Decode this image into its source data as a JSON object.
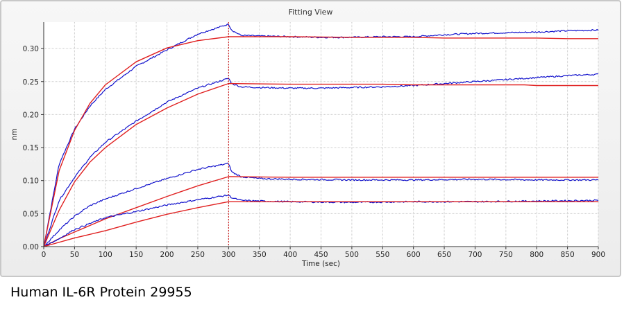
{
  "window": {
    "title": "Fitting View"
  },
  "caption": "Human IL-6R Protein 29955",
  "colors": {
    "measured": "#1111cc",
    "fit": "#e02020",
    "grid": "#c9c9c9",
    "divider": "#cc0000",
    "plot_bg": "#ffffff"
  },
  "chart_data": {
    "type": "line",
    "title": "Fitting View",
    "xlabel": "Time (sec)",
    "ylabel": "nm",
    "xlim": [
      0,
      900
    ],
    "ylim": [
      0,
      0.34
    ],
    "x_ticks": [
      0,
      50,
      100,
      150,
      200,
      250,
      300,
      350,
      400,
      450,
      500,
      550,
      600,
      650,
      700,
      750,
      800,
      850,
      900
    ],
    "y_ticks": [
      "0.00",
      "0.05",
      "0.10",
      "0.15",
      "0.20",
      "0.25",
      "0.30"
    ],
    "grid": true,
    "association_end_marker_x": 300,
    "series": [
      {
        "style": "measured",
        "color": "#1111cc",
        "x": [
          0,
          25,
          50,
          75,
          100,
          150,
          200,
          250,
          300,
          305,
          320,
          350,
          400,
          450,
          500,
          550,
          600,
          650,
          700,
          750,
          800,
          850,
          900
        ],
        "y": [
          0,
          0.125,
          0.178,
          0.213,
          0.238,
          0.273,
          0.298,
          0.322,
          0.337,
          0.328,
          0.32,
          0.319,
          0.318,
          0.317,
          0.317,
          0.318,
          0.318,
          0.321,
          0.323,
          0.324,
          0.325,
          0.327,
          0.328
        ]
      },
      {
        "style": "fit",
        "color": "#e02020",
        "x": [
          0,
          25,
          50,
          75,
          100,
          150,
          200,
          250,
          300,
          400,
          500,
          600,
          650,
          700,
          800,
          850,
          900
        ],
        "y": [
          0,
          0.115,
          0.176,
          0.217,
          0.245,
          0.28,
          0.301,
          0.312,
          0.318,
          0.318,
          0.317,
          0.317,
          0.316,
          0.316,
          0.316,
          0.315,
          0.315
        ]
      },
      {
        "style": "measured",
        "color": "#1111cc",
        "x": [
          0,
          25,
          50,
          75,
          100,
          150,
          200,
          250,
          300,
          305,
          320,
          350,
          400,
          450,
          500,
          550,
          600,
          650,
          700,
          750,
          800,
          850,
          900
        ],
        "y": [
          0,
          0.07,
          0.105,
          0.135,
          0.158,
          0.19,
          0.219,
          0.24,
          0.255,
          0.247,
          0.242,
          0.241,
          0.24,
          0.24,
          0.241,
          0.242,
          0.244,
          0.247,
          0.25,
          0.253,
          0.256,
          0.259,
          0.261
        ]
      },
      {
        "style": "fit",
        "color": "#e02020",
        "x": [
          0,
          25,
          50,
          75,
          100,
          150,
          200,
          250,
          300,
          400,
          500,
          550,
          600,
          700,
          780,
          800,
          900
        ],
        "y": [
          0,
          0.055,
          0.098,
          0.128,
          0.15,
          0.185,
          0.21,
          0.231,
          0.247,
          0.246,
          0.246,
          0.246,
          0.245,
          0.245,
          0.245,
          0.244,
          0.244
        ]
      },
      {
        "style": "measured",
        "color": "#1111cc",
        "x": [
          0,
          25,
          50,
          75,
          100,
          150,
          200,
          250,
          300,
          305,
          320,
          350,
          400,
          500,
          600,
          700,
          800,
          900
        ],
        "y": [
          0,
          0.025,
          0.046,
          0.062,
          0.072,
          0.088,
          0.103,
          0.117,
          0.126,
          0.113,
          0.106,
          0.103,
          0.102,
          0.101,
          0.101,
          0.102,
          0.101,
          0.101
        ]
      },
      {
        "style": "fit",
        "color": "#e02020",
        "x": [
          0,
          25,
          50,
          100,
          150,
          200,
          250,
          300,
          400,
          500,
          600,
          700,
          800,
          900
        ],
        "y": [
          0,
          0.012,
          0.022,
          0.042,
          0.059,
          0.076,
          0.092,
          0.106,
          0.105,
          0.105,
          0.105,
          0.105,
          0.105,
          0.105
        ]
      },
      {
        "style": "measured",
        "color": "#1111cc",
        "x": [
          0,
          25,
          50,
          75,
          100,
          150,
          200,
          250,
          300,
          305,
          320,
          350,
          400,
          500,
          600,
          700,
          800,
          900
        ],
        "y": [
          0,
          0.012,
          0.026,
          0.035,
          0.044,
          0.053,
          0.063,
          0.071,
          0.078,
          0.074,
          0.07,
          0.069,
          0.068,
          0.067,
          0.068,
          0.068,
          0.069,
          0.07
        ]
      },
      {
        "style": "fit",
        "color": "#e02020",
        "x": [
          0,
          50,
          100,
          150,
          200,
          250,
          300,
          400,
          500,
          600,
          700,
          800,
          900
        ],
        "y": [
          0,
          0.013,
          0.024,
          0.037,
          0.049,
          0.059,
          0.068,
          0.068,
          0.068,
          0.068,
          0.068,
          0.068,
          0.068
        ]
      }
    ]
  }
}
